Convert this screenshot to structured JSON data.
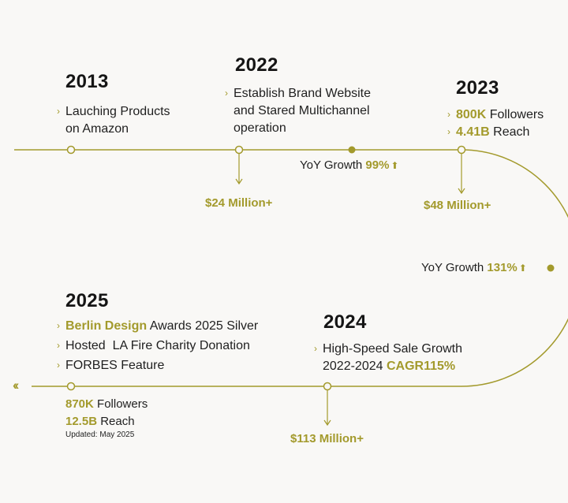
{
  "colors": {
    "accent": "#a39a2c",
    "text": "#1a1a1a",
    "background": "#f9f8f6"
  },
  "milestones": {
    "m2013": {
      "year": "2013",
      "lines": [
        "Lauching Products",
        "on Amazon"
      ]
    },
    "m2022": {
      "year": "2022",
      "lines": [
        "Establish Brand Website",
        "and Stared Multichannel",
        "operation"
      ],
      "revenue": "$24 Million+"
    },
    "m2023": {
      "year": "2023",
      "followers_value": "800K",
      "followers_label": "Followers",
      "reach_value": "4.41B",
      "reach_label": "Reach",
      "revenue": "$48 Million+"
    },
    "m2024": {
      "year": "2024",
      "line1": "High-Speed Sale Growth",
      "line2_prefix": "2022-2024",
      "line2_highlight": "CAGR115%",
      "revenue": "$113 Million+"
    },
    "m2025": {
      "year": "2025",
      "award_highlight": "Berlin Design",
      "award_rest": "Awards 2025 Silver",
      "charity": "Hosted  LA Fire Charity Donation",
      "forbes": "FORBES Feature",
      "followers_value": "870K",
      "followers_label": "Followers",
      "reach_value": "12.5B",
      "reach_label": "Reach",
      "updated": "Updated: May 2025"
    }
  },
  "growth": {
    "g1": {
      "label": "YoY Growth",
      "value": "99%"
    },
    "g2": {
      "label": "YoY Growth",
      "value": "131%"
    }
  },
  "icons": {
    "bullet": "chevron-right-icon",
    "growth_arrow": "arrow-up-icon",
    "timeline_continue": "double-chevron-left-icon"
  }
}
